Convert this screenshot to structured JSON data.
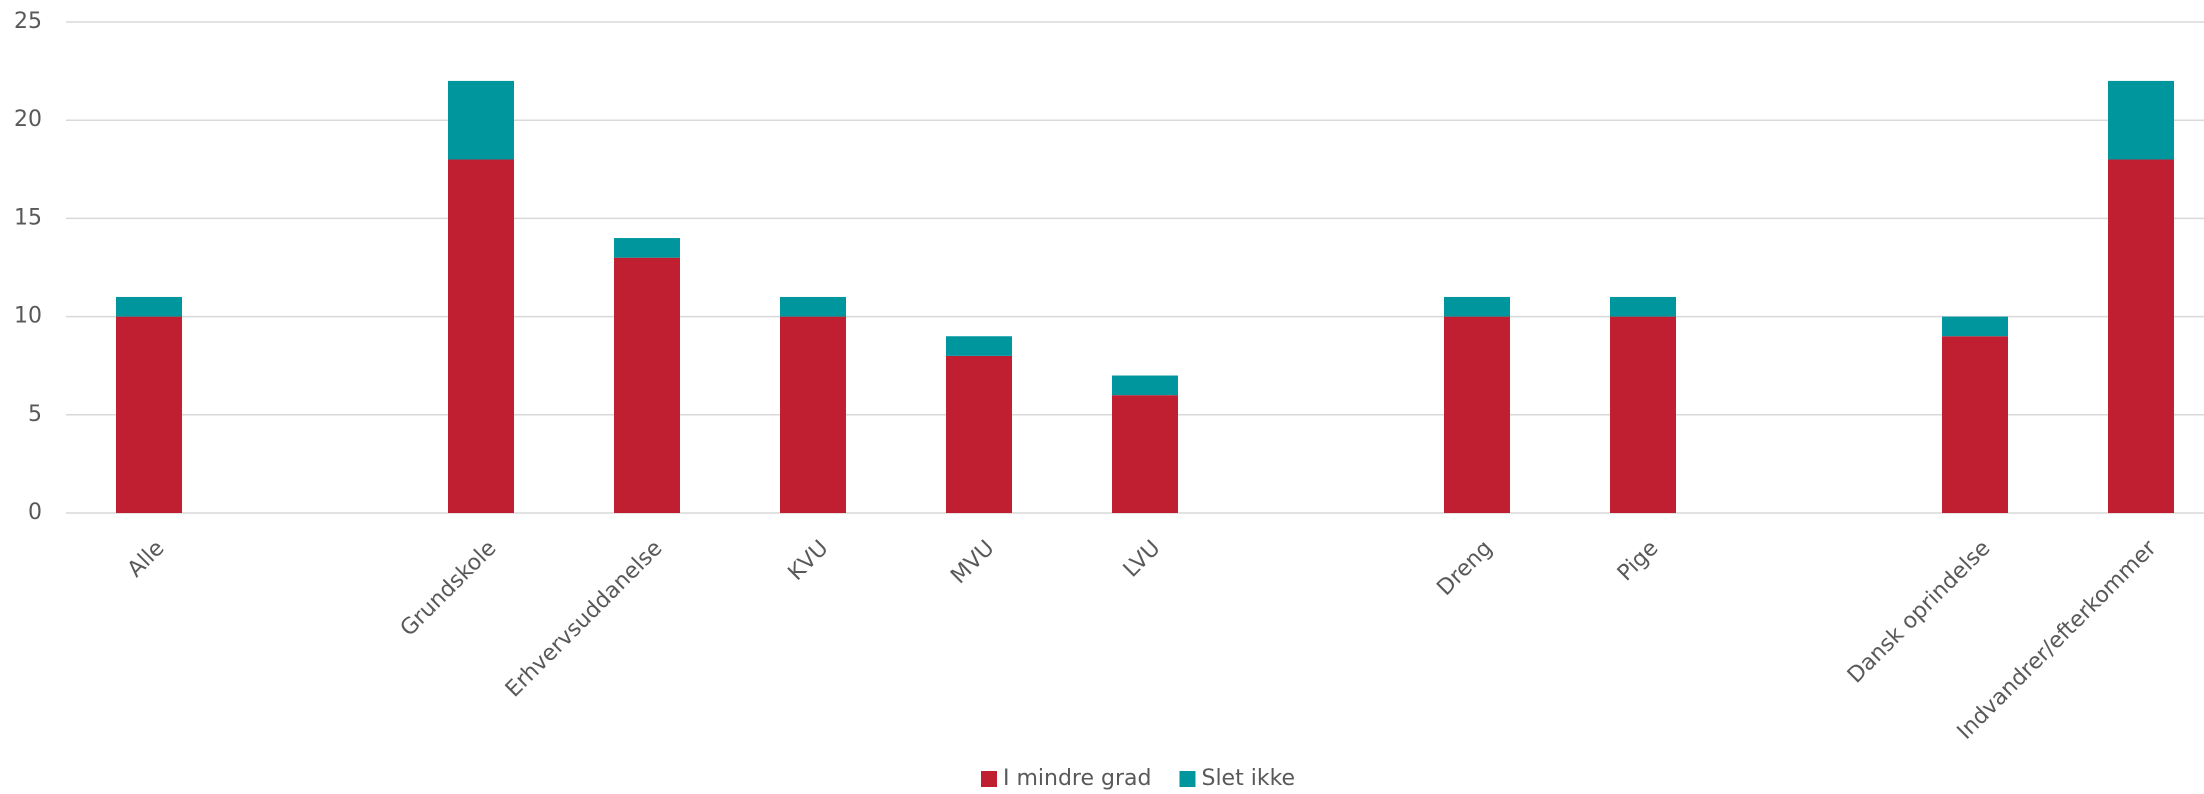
{
  "chart_data": {
    "type": "stacked_bar",
    "categories": [
      "Alle",
      null,
      "Grundskole",
      "Erhvervsuddanelse",
      "KVU",
      "MVU",
      "LVU",
      null,
      "Dreng",
      "Pige",
      null,
      "Dansk oprindelse",
      "Indvandrer/efterkommer"
    ],
    "series": [
      {
        "name": "I mindre grad",
        "color": "#c01f32",
        "values": [
          10,
          null,
          18,
          13,
          10,
          8,
          6,
          null,
          10,
          10,
          null,
          9,
          18
        ]
      },
      {
        "name": "Slet ikke",
        "color": "#00969e",
        "values": [
          1,
          null,
          4,
          1,
          1,
          1,
          1,
          null,
          1,
          1,
          null,
          1,
          4
        ]
      }
    ],
    "ylim": [
      0,
      25
    ],
    "yticks": [
      0,
      5,
      10,
      15,
      20,
      25
    ],
    "grid": true,
    "legend": "bottom"
  }
}
